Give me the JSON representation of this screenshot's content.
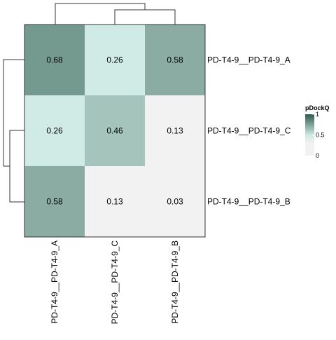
{
  "chart_data": {
    "type": "heatmap",
    "rows": [
      "PD-T4-9__PD-T4-9_A",
      "PD-T4-9__PD-T4-9_C",
      "PD-T4-9__PD-T4-9_B"
    ],
    "columns": [
      "PD-T4-9__PD-T4-9_A",
      "PD-T4-9__PD-T4-9_C",
      "PD-T4-9__PD-T4-9_B"
    ],
    "values": [
      [
        0.68,
        0.26,
        0.58
      ],
      [
        0.26,
        0.46,
        0.13
      ],
      [
        0.58,
        0.13,
        0.03
      ]
    ],
    "cell_labels": [
      [
        "0.68",
        "0.26",
        "0.58"
      ],
      [
        "0.26",
        "0.46",
        "0.13"
      ],
      [
        "0.58",
        "0.13",
        "0.03"
      ]
    ],
    "legend": {
      "title": "pDockQ",
      "ticks": [
        {
          "value": 1,
          "label": "1"
        },
        {
          "value": 0.5,
          "label": "0.5"
        },
        {
          "value": 0,
          "label": "0"
        }
      ],
      "range": [
        0,
        1
      ],
      "placement": "right"
    },
    "color_scale": {
      "low": "#f2f2f2",
      "mid": "#d0ebe6",
      "high": "#2e5a4c"
    },
    "row_dendrogram": true,
    "column_dendrogram": true
  }
}
